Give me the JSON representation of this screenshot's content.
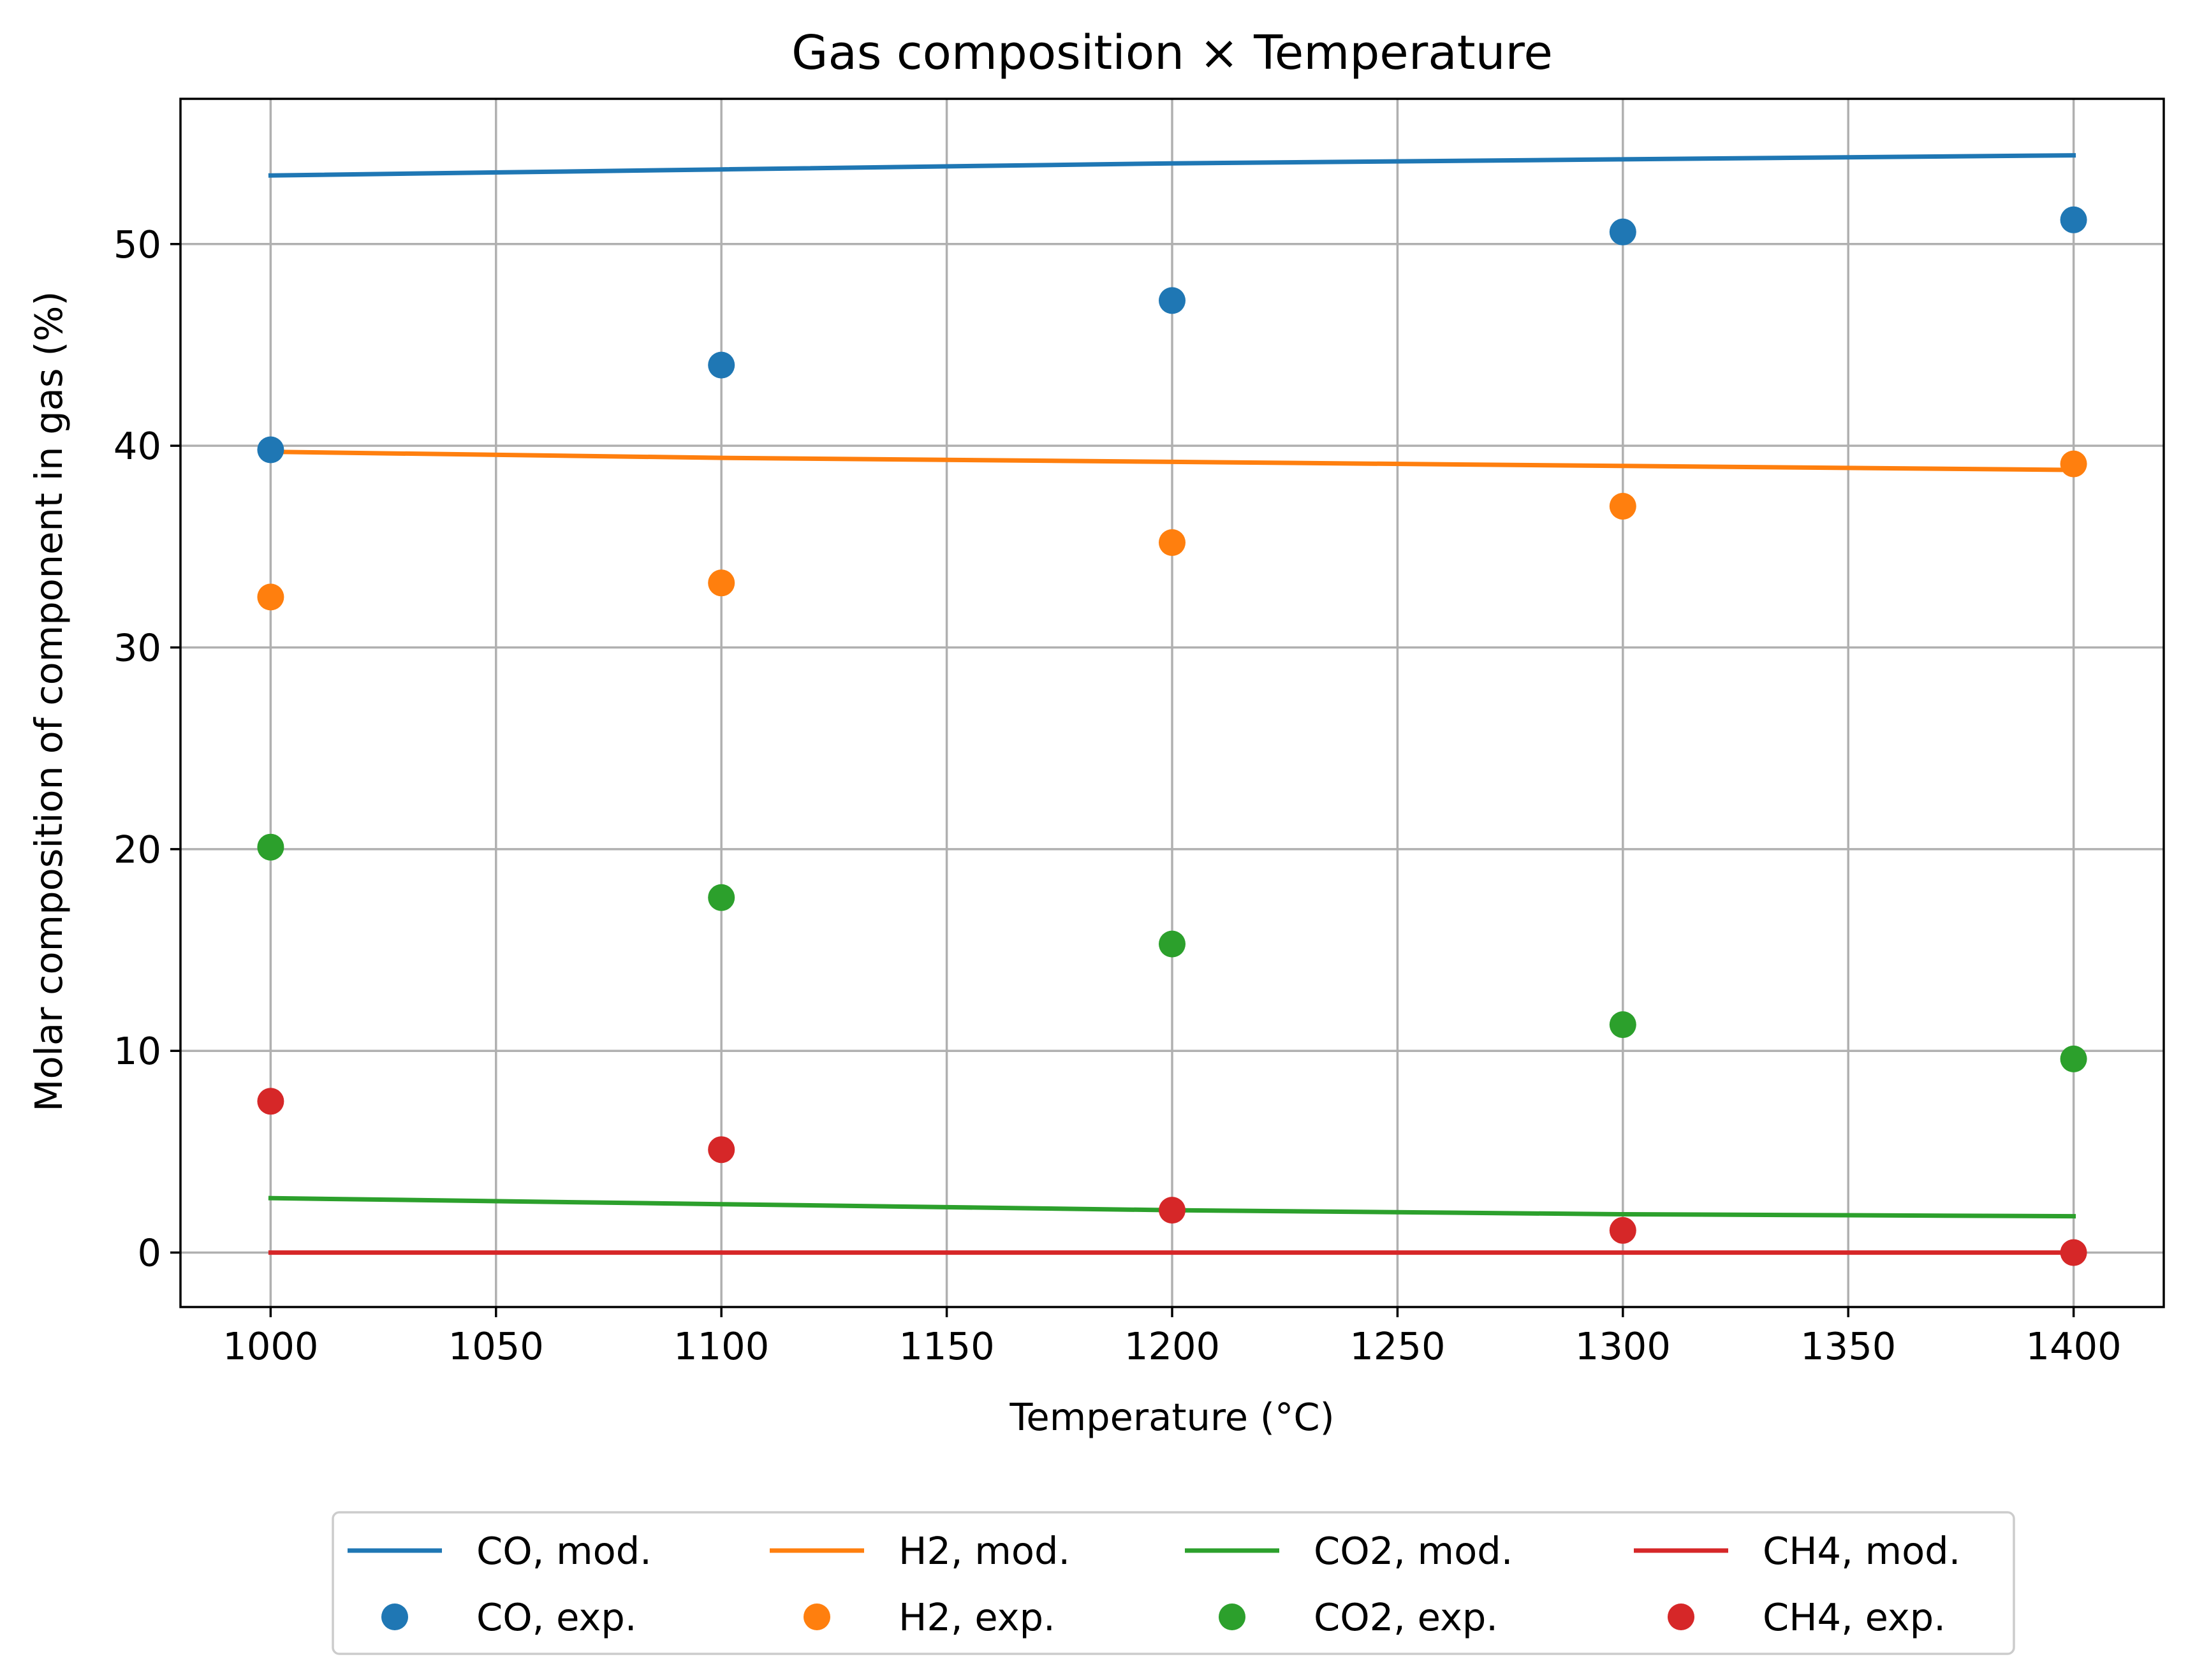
{
  "chart_data": {
    "type": "line",
    "title": "Gas composition × Temperature",
    "xlabel": "Temperature (°C)",
    "ylabel": "Molar composition of component in gas (%)",
    "xlim": [
      980,
      1420
    ],
    "ylim": [
      -2.7,
      57.2
    ],
    "xticks": [
      1000,
      1050,
      1100,
      1150,
      1200,
      1250,
      1300,
      1350,
      1400
    ],
    "yticks": [
      0,
      10,
      20,
      30,
      40,
      50
    ],
    "grid": true,
    "legend_position": "below plot, 4 columns",
    "x": [
      1000,
      1100,
      1200,
      1300,
      1400
    ],
    "series": [
      {
        "name": "CO, mod.",
        "kind": "line",
        "color": "#1f77b4",
        "values": [
          53.4,
          53.7,
          54.0,
          54.2,
          54.4
        ]
      },
      {
        "name": "H2, mod.",
        "kind": "line",
        "color": "#ff7f0e",
        "values": [
          39.7,
          39.4,
          39.2,
          39.0,
          38.8
        ]
      },
      {
        "name": "CO2, mod.",
        "kind": "line",
        "color": "#2ca02c",
        "values": [
          2.7,
          2.4,
          2.1,
          1.9,
          1.8
        ]
      },
      {
        "name": "CH4, mod.",
        "kind": "line",
        "color": "#d62728",
        "values": [
          0.0,
          0.0,
          0.0,
          0.0,
          0.0
        ]
      },
      {
        "name": "CO, exp.",
        "kind": "scatter",
        "color": "#1f77b4",
        "values": [
          39.8,
          44.0,
          47.2,
          50.6,
          51.2
        ]
      },
      {
        "name": "H2, exp.",
        "kind": "scatter",
        "color": "#ff7f0e",
        "values": [
          32.5,
          33.2,
          35.2,
          37.0,
          39.1
        ]
      },
      {
        "name": "CO2, exp.",
        "kind": "scatter",
        "color": "#2ca02c",
        "values": [
          20.1,
          17.6,
          15.3,
          11.3,
          9.6
        ]
      },
      {
        "name": "CH4, exp.",
        "kind": "scatter",
        "color": "#d62728",
        "values": [
          7.5,
          5.1,
          2.1,
          1.1,
          0.0
        ]
      }
    ]
  }
}
